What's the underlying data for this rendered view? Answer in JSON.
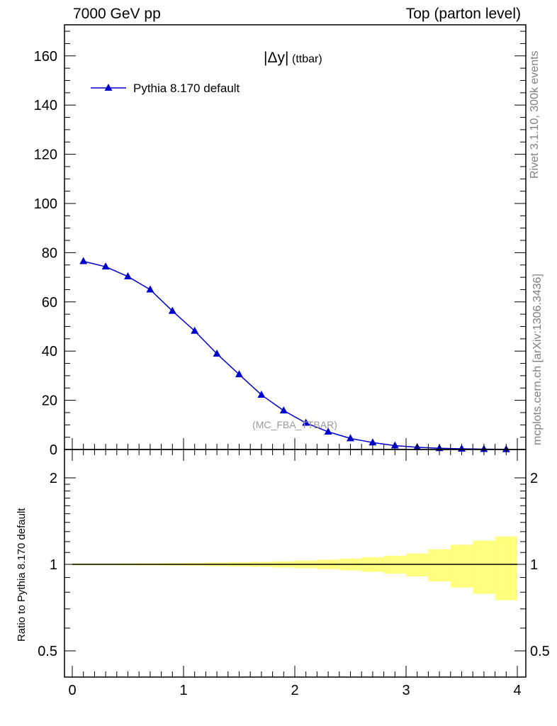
{
  "header": {
    "left": "7000 GeV pp",
    "right": "Top (parton level)"
  },
  "side_text": {
    "rivet": "Rivet 3.1.10,  300k events",
    "site": "mcplots.cern.ch [arXiv:1306.3436]"
  },
  "chart_data": [
    {
      "type": "line",
      "title": "|Δy|",
      "title_suffix": "(ttbar)",
      "analysis_label": "(MC_FBA_TTBAR)",
      "legend_position": "top-left",
      "xlim": [
        0,
        4
      ],
      "ylim": [
        0,
        173
      ],
      "yticks": [
        0,
        20,
        40,
        60,
        80,
        100,
        120,
        140,
        160
      ],
      "xlabel": "",
      "ylabel": "",
      "series": [
        {
          "name": "Pythia 8.170 default",
          "color": "#0000cc",
          "marker": "triangle",
          "x": [
            0.1,
            0.3,
            0.5,
            0.7,
            0.9,
            1.1,
            1.3,
            1.5,
            1.7,
            1.9,
            2.1,
            2.3,
            2.5,
            2.7,
            2.9,
            3.1,
            3.3,
            3.5,
            3.7,
            3.9
          ],
          "y": [
            76.5,
            74.3,
            70.3,
            65.0,
            56.3,
            48.2,
            38.9,
            30.5,
            22.2,
            15.8,
            10.8,
            7.2,
            4.5,
            2.8,
            1.6,
            0.9,
            0.5,
            0.3,
            0.15,
            0.07
          ]
        }
      ]
    },
    {
      "type": "area",
      "ylabel": "Ratio to Pythia 8.170 default",
      "xlim": [
        0,
        4
      ],
      "ylim": [
        0.35,
        2.25
      ],
      "yticks": [
        0.5,
        1,
        2
      ],
      "xticks": [
        0,
        1,
        2,
        3,
        4
      ],
      "bin_edges": [
        0,
        0.2,
        0.4,
        0.6,
        0.8,
        1.0,
        1.2,
        1.4,
        1.6,
        1.8,
        2.0,
        2.2,
        2.4,
        2.6,
        2.8,
        3.0,
        3.2,
        3.4,
        3.6,
        3.8,
        4.0
      ],
      "bands": [
        {
          "name": "stat",
          "color": "#90ee90",
          "lower": [
            0.996,
            0.996,
            0.995,
            0.995,
            0.994,
            0.993,
            0.992,
            0.99,
            0.988,
            0.985,
            0.982,
            0.978,
            0.97,
            0.962,
            0.95,
            0.935,
            0.91,
            0.88,
            0.85,
            0.82
          ],
          "upper": [
            1.004,
            1.004,
            1.005,
            1.005,
            1.006,
            1.007,
            1.008,
            1.01,
            1.012,
            1.015,
            1.018,
            1.022,
            1.03,
            1.038,
            1.05,
            1.065,
            1.09,
            1.12,
            1.15,
            1.18
          ]
        },
        {
          "name": "syst",
          "color": "#ffff80",
          "lower": [
            0.993,
            0.993,
            0.992,
            0.991,
            0.99,
            0.988,
            0.986,
            0.983,
            0.98,
            0.975,
            0.97,
            0.962,
            0.953,
            0.942,
            0.928,
            0.908,
            0.872,
            0.83,
            0.79,
            0.75
          ],
          "upper": [
            1.007,
            1.007,
            1.008,
            1.009,
            1.01,
            1.012,
            1.014,
            1.017,
            1.02,
            1.025,
            1.03,
            1.038,
            1.047,
            1.058,
            1.072,
            1.092,
            1.128,
            1.17,
            1.21,
            1.25
          ]
        }
      ],
      "reference_line": 1
    }
  ]
}
